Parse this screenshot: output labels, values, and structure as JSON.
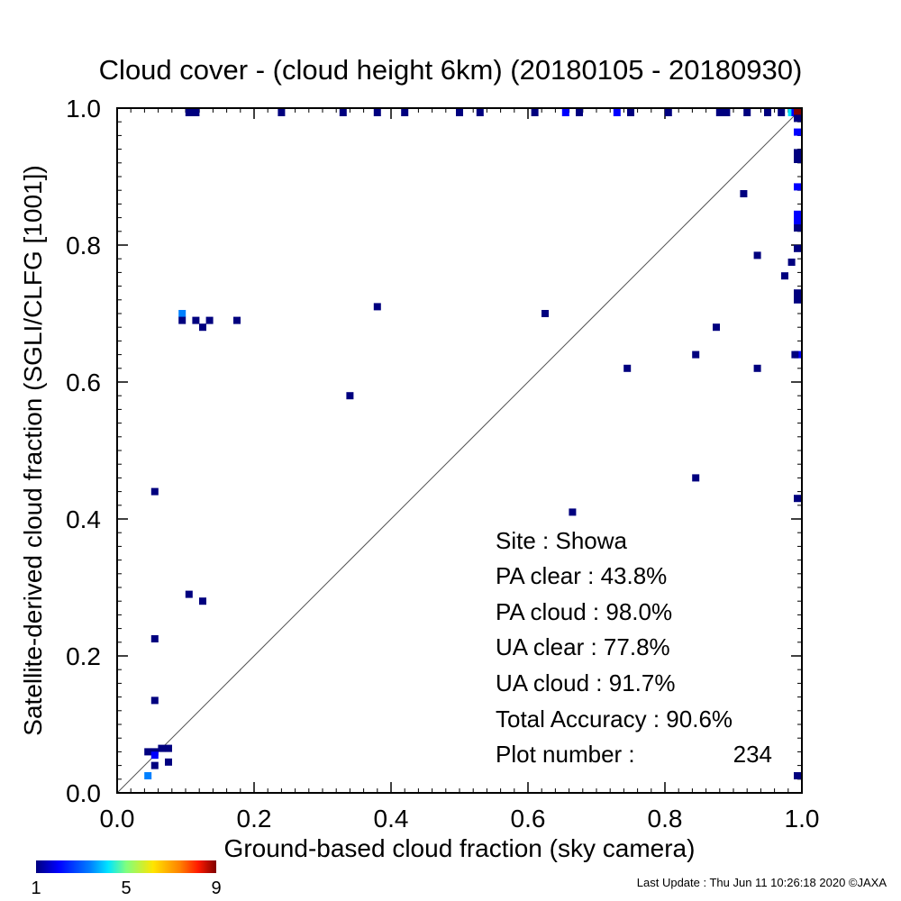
{
  "chart_data": {
    "type": "scatter",
    "title": "Cloud cover - (cloud height 6km)  (20180105 - 20180930)",
    "xlabel": "Ground-based cloud fraction (sky camera)",
    "ylabel": "Satellite-derived cloud fraction (SGLI/CLFG [1001])",
    "xlim": [
      0.0,
      1.0
    ],
    "ylim": [
      0.0,
      1.0
    ],
    "x_ticks": [
      "0.0",
      "0.2",
      "0.4",
      "0.6",
      "0.8",
      "1.0"
    ],
    "y_ticks": [
      "0.0",
      "0.2",
      "0.4",
      "0.6",
      "0.8",
      "1.0"
    ],
    "diagonal": "1:1 line",
    "colorbar": {
      "min": 1,
      "max": 9,
      "tick_labels": [
        "1",
        "5",
        "9"
      ],
      "colors": [
        "#00007f",
        "#0000ff",
        "#0080ff",
        "#00e5ff",
        "#7fff7f",
        "#ffe500",
        "#ff8000",
        "#ff1a00",
        "#800000"
      ]
    },
    "points": [
      {
        "x": 0.105,
        "y": 1.0,
        "c": 1
      },
      {
        "x": 0.11,
        "y": 1.0,
        "c": 1
      },
      {
        "x": 0.115,
        "y": 1.0,
        "c": 1
      },
      {
        "x": 0.24,
        "y": 1.0,
        "c": 1
      },
      {
        "x": 0.33,
        "y": 1.0,
        "c": 1
      },
      {
        "x": 0.38,
        "y": 1.0,
        "c": 1
      },
      {
        "x": 0.42,
        "y": 1.0,
        "c": 1
      },
      {
        "x": 0.5,
        "y": 1.0,
        "c": 1
      },
      {
        "x": 0.53,
        "y": 1.0,
        "c": 1
      },
      {
        "x": 0.61,
        "y": 1.0,
        "c": 1
      },
      {
        "x": 0.655,
        "y": 1.0,
        "c": 2
      },
      {
        "x": 0.675,
        "y": 1.0,
        "c": 1
      },
      {
        "x": 0.73,
        "y": 1.0,
        "c": 2
      },
      {
        "x": 0.75,
        "y": 1.0,
        "c": 1
      },
      {
        "x": 0.805,
        "y": 1.0,
        "c": 1
      },
      {
        "x": 0.88,
        "y": 1.0,
        "c": 1
      },
      {
        "x": 0.89,
        "y": 1.0,
        "c": 1
      },
      {
        "x": 0.92,
        "y": 1.0,
        "c": 1
      },
      {
        "x": 0.95,
        "y": 1.0,
        "c": 1
      },
      {
        "x": 0.97,
        "y": 1.0,
        "c": 1
      },
      {
        "x": 0.985,
        "y": 1.0,
        "c": 4
      },
      {
        "x": 0.99,
        "y": 1.0,
        "c": 2
      },
      {
        "x": 1.0,
        "y": 1.0,
        "c": 9
      },
      {
        "x": 1.0,
        "y": 0.985,
        "c": 1
      },
      {
        "x": 1.0,
        "y": 0.965,
        "c": 2
      },
      {
        "x": 1.0,
        "y": 0.935,
        "c": 1
      },
      {
        "x": 1.0,
        "y": 0.925,
        "c": 1
      },
      {
        "x": 1.0,
        "y": 0.885,
        "c": 2
      },
      {
        "x": 1.0,
        "y": 0.845,
        "c": 2
      },
      {
        "x": 1.0,
        "y": 0.835,
        "c": 2
      },
      {
        "x": 1.0,
        "y": 0.825,
        "c": 1
      },
      {
        "x": 1.0,
        "y": 0.795,
        "c": 1
      },
      {
        "x": 1.0,
        "y": 0.73,
        "c": 1
      },
      {
        "x": 1.0,
        "y": 0.72,
        "c": 1
      },
      {
        "x": 1.0,
        "y": 0.64,
        "c": 2
      },
      {
        "x": 1.0,
        "y": 0.43,
        "c": 1
      },
      {
        "x": 1.0,
        "y": 0.025,
        "c": 1
      },
      {
        "x": 0.915,
        "y": 0.875,
        "c": 1
      },
      {
        "x": 0.935,
        "y": 0.785,
        "c": 1
      },
      {
        "x": 0.985,
        "y": 0.775,
        "c": 1
      },
      {
        "x": 0.975,
        "y": 0.755,
        "c": 1
      },
      {
        "x": 0.875,
        "y": 0.68,
        "c": 1
      },
      {
        "x": 0.845,
        "y": 0.64,
        "c": 1
      },
      {
        "x": 0.99,
        "y": 0.64,
        "c": 1
      },
      {
        "x": 0.935,
        "y": 0.62,
        "c": 1
      },
      {
        "x": 0.745,
        "y": 0.62,
        "c": 1
      },
      {
        "x": 0.625,
        "y": 0.7,
        "c": 1
      },
      {
        "x": 0.845,
        "y": 0.46,
        "c": 1
      },
      {
        "x": 0.665,
        "y": 0.41,
        "c": 1
      },
      {
        "x": 0.38,
        "y": 0.71,
        "c": 1
      },
      {
        "x": 0.34,
        "y": 0.58,
        "c": 1
      },
      {
        "x": 0.095,
        "y": 0.7,
        "c": 3
      },
      {
        "x": 0.095,
        "y": 0.69,
        "c": 1
      },
      {
        "x": 0.115,
        "y": 0.69,
        "c": 1
      },
      {
        "x": 0.125,
        "y": 0.68,
        "c": 1
      },
      {
        "x": 0.135,
        "y": 0.69,
        "c": 1
      },
      {
        "x": 0.175,
        "y": 0.69,
        "c": 1
      },
      {
        "x": 0.055,
        "y": 0.44,
        "c": 1
      },
      {
        "x": 0.105,
        "y": 0.29,
        "c": 1
      },
      {
        "x": 0.125,
        "y": 0.28,
        "c": 1
      },
      {
        "x": 0.055,
        "y": 0.225,
        "c": 1
      },
      {
        "x": 0.055,
        "y": 0.135,
        "c": 1
      },
      {
        "x": 0.045,
        "y": 0.06,
        "c": 1
      },
      {
        "x": 0.055,
        "y": 0.06,
        "c": 1
      },
      {
        "x": 0.065,
        "y": 0.065,
        "c": 1
      },
      {
        "x": 0.075,
        "y": 0.065,
        "c": 1
      },
      {
        "x": 0.055,
        "y": 0.055,
        "c": 2
      },
      {
        "x": 0.075,
        "y": 0.045,
        "c": 1
      },
      {
        "x": 0.055,
        "y": 0.04,
        "c": 1
      },
      {
        "x": 0.045,
        "y": 0.025,
        "c": 3
      }
    ]
  },
  "stats": {
    "site": "Site : Showa",
    "pa_clear": "PA clear :  43.8%",
    "pa_cloud": "PA cloud :  98.0%",
    "ua_clear": "UA clear :  77.8%",
    "ua_cloud": "UA cloud :  91.7%",
    "total_accuracy": "Total Accuracy :  90.6%",
    "plot_number_label": "Plot number :",
    "plot_number_value": "234"
  },
  "footer": "Last Update : Thu Jun 11 10:26:18 2020  ©JAXA"
}
